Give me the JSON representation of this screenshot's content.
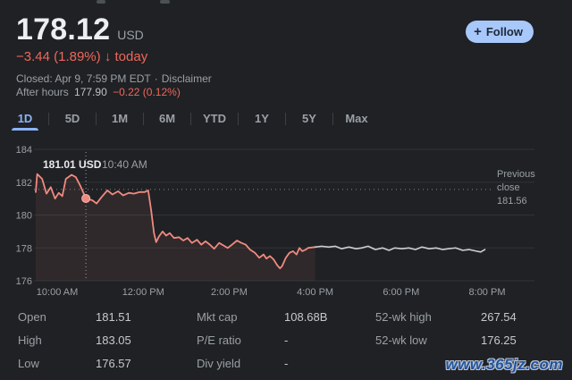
{
  "colors": {
    "background": "#202124",
    "negative_text": "#ee675c",
    "chart_line_regular": "#f08a80",
    "chart_line_after_hours": "#cdd0d2",
    "chart_fill": "rgba(242,139,130,0.08)",
    "accent_blue": "#8ab4f8",
    "follow_button_bg": "#a8c7fa",
    "gridline": "#2f3337",
    "axis_text": "#9aa0a6",
    "watermark_blue": "#24549c"
  },
  "header": {
    "price": "178.12",
    "currency": "USD",
    "change": "−3.44 (1.89%)",
    "change_arrow": "↓",
    "change_period": "today",
    "closed_text": "Closed: Apr 9, 7:59 PM EDT",
    "separator": "·",
    "disclaimer_label": "Disclaimer",
    "after_hours_label": "After hours",
    "after_hours_price": "177.90",
    "after_hours_change": "−0.22 (0.12%)",
    "follow_button": {
      "plus": "+",
      "label": "Follow"
    }
  },
  "tabs": {
    "items": [
      {
        "label": "1D",
        "active": true
      },
      {
        "label": "5D",
        "active": false
      },
      {
        "label": "1M",
        "active": false
      },
      {
        "label": "6M",
        "active": false
      },
      {
        "label": "YTD",
        "active": false
      },
      {
        "label": "1Y",
        "active": false
      },
      {
        "label": "5Y",
        "active": false
      },
      {
        "label": "Max",
        "active": false
      }
    ]
  },
  "chart_data": {
    "type": "line",
    "xlabel": "",
    "ylabel": "",
    "ylim": [
      176,
      184
    ],
    "y_ticks": [
      184,
      182,
      180,
      178,
      176
    ],
    "x_ticks": [
      {
        "label": "10:00 AM",
        "minutes": 600
      },
      {
        "label": "12:00 PM",
        "minutes": 720
      },
      {
        "label": "2:00 PM",
        "minutes": 840
      },
      {
        "label": "4:00 PM",
        "minutes": 960
      },
      {
        "label": "6:00 PM",
        "minutes": 1080
      },
      {
        "label": "8:00 PM",
        "minutes": 1200
      }
    ],
    "x_range_minutes": [
      570,
      1200
    ],
    "previous_close": {
      "label": "Previous close",
      "value": "181.56",
      "price": 181.56
    },
    "crosshair": {
      "minutes": 640,
      "price": 181.01,
      "tooltip_price": "181.01 USD",
      "tooltip_time": "10:40 AM"
    },
    "legend": null,
    "grid": true,
    "series": [
      {
        "name": "regular-hours",
        "color": "#f08a80",
        "points": [
          [
            570,
            181.4
          ],
          [
            572,
            182.5
          ],
          [
            579,
            182.2
          ],
          [
            585,
            181.3
          ],
          [
            591,
            181.7
          ],
          [
            597,
            181.0
          ],
          [
            602,
            181.35
          ],
          [
            607,
            181.15
          ],
          [
            612,
            182.2
          ],
          [
            620,
            182.45
          ],
          [
            626,
            182.3
          ],
          [
            632,
            181.8
          ],
          [
            640,
            181.01
          ],
          [
            649,
            180.9
          ],
          [
            655,
            180.7
          ],
          [
            662,
            181.1
          ],
          [
            670,
            181.5
          ],
          [
            677,
            181.25
          ],
          [
            685,
            181.45
          ],
          [
            692,
            181.2
          ],
          [
            700,
            181.35
          ],
          [
            707,
            181.3
          ],
          [
            715,
            181.4
          ],
          [
            722,
            181.4
          ],
          [
            727,
            181.5
          ],
          [
            731,
            180.3
          ],
          [
            735,
            178.9
          ],
          [
            738,
            178.35
          ],
          [
            742,
            178.7
          ],
          [
            747,
            179.0
          ],
          [
            752,
            178.75
          ],
          [
            757,
            178.9
          ],
          [
            763,
            178.6
          ],
          [
            770,
            178.65
          ],
          [
            776,
            178.45
          ],
          [
            782,
            178.6
          ],
          [
            788,
            178.3
          ],
          [
            795,
            178.5
          ],
          [
            801,
            178.2
          ],
          [
            807,
            178.4
          ],
          [
            813,
            178.2
          ],
          [
            819,
            177.95
          ],
          [
            826,
            178.3
          ],
          [
            832,
            178.15
          ],
          [
            838,
            178.0
          ],
          [
            844,
            178.2
          ],
          [
            851,
            178.45
          ],
          [
            857,
            178.3
          ],
          [
            863,
            178.2
          ],
          [
            869,
            177.9
          ],
          [
            876,
            177.7
          ],
          [
            882,
            177.4
          ],
          [
            888,
            177.6
          ],
          [
            892,
            177.35
          ],
          [
            897,
            177.5
          ],
          [
            902,
            177.3
          ],
          [
            907,
            176.95
          ],
          [
            911,
            176.75
          ],
          [
            914,
            176.9
          ],
          [
            919,
            177.4
          ],
          [
            924,
            177.7
          ],
          [
            929,
            177.8
          ],
          [
            934,
            177.6
          ],
          [
            938,
            178.0
          ],
          [
            942,
            177.8
          ],
          [
            947,
            177.9
          ],
          [
            950,
            178.0
          ],
          [
            960,
            178.05
          ]
        ]
      },
      {
        "name": "after-hours",
        "color": "#cdd0d2",
        "points": [
          [
            960,
            178.05
          ],
          [
            969,
            178.1
          ],
          [
            979,
            178.05
          ],
          [
            988,
            178.1
          ],
          [
            997,
            177.95
          ],
          [
            1007,
            178.05
          ],
          [
            1017,
            177.95
          ],
          [
            1025,
            178.0
          ],
          [
            1034,
            178.1
          ],
          [
            1044,
            177.9
          ],
          [
            1054,
            178.0
          ],
          [
            1063,
            177.85
          ],
          [
            1071,
            178.0
          ],
          [
            1081,
            177.95
          ],
          [
            1091,
            178.0
          ],
          [
            1100,
            177.9
          ],
          [
            1109,
            178.05
          ],
          [
            1119,
            177.95
          ],
          [
            1129,
            178.0
          ],
          [
            1138,
            177.9
          ],
          [
            1146,
            177.95
          ],
          [
            1156,
            178.0
          ],
          [
            1166,
            177.85
          ],
          [
            1175,
            177.9
          ],
          [
            1185,
            177.8
          ],
          [
            1191,
            177.75
          ],
          [
            1197,
            177.9
          ]
        ]
      }
    ]
  },
  "stats": {
    "columns": [
      [
        {
          "label": "Open",
          "value": "181.51"
        },
        {
          "label": "High",
          "value": "183.05"
        },
        {
          "label": "Low",
          "value": "176.57"
        }
      ],
      [
        {
          "label": "Mkt cap",
          "value": "108.68B"
        },
        {
          "label": "P/E ratio",
          "value": "-"
        },
        {
          "label": "Div yield",
          "value": "-"
        }
      ],
      [
        {
          "label": "52-wk high",
          "value": "267.54"
        },
        {
          "label": "52-wk low",
          "value": "176.25"
        }
      ]
    ]
  },
  "watermark": {
    "text": "www.365jz.com"
  }
}
